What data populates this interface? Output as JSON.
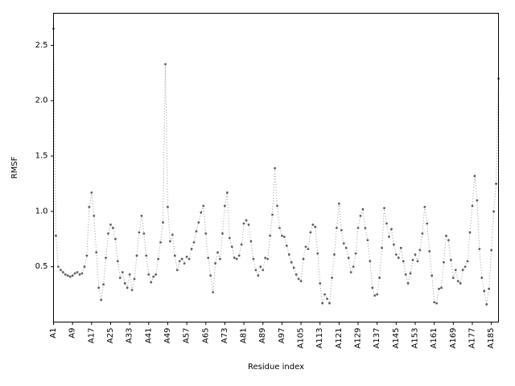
{
  "figure": {
    "background": "#ffffff",
    "line_color": "#999999",
    "marker_color": "#5f5f5f",
    "spine_color": "#000000"
  },
  "chart_data": {
    "type": "line",
    "style": "dotted line with small point markers, gray",
    "title": "",
    "xlabel": "Residue index",
    "ylabel": "RMSF",
    "legend": "none",
    "grid": false,
    "ylim": [
      0,
      2.79
    ],
    "y_ticks": [
      0.5,
      1.0,
      1.5,
      2.0,
      2.5
    ],
    "y_tick_labels": [
      "0.5",
      "1.0",
      "1.5",
      "2.0",
      "2.5"
    ],
    "x_tick_step": 8,
    "x_tick_labels": [
      "A1",
      "A9",
      "A17",
      "A25",
      "A33",
      "A41",
      "A49",
      "A57",
      "A65",
      "A73",
      "A81",
      "A89",
      "A97",
      "A105",
      "A113",
      "A121",
      "A129",
      "A137",
      "A145",
      "A153",
      "A161",
      "A169",
      "A177",
      "A185"
    ],
    "x_tick_label_rotation": 90,
    "residue_prefix": "A",
    "n_points": 188,
    "values": [
      2.65,
      0.78,
      0.5,
      0.47,
      0.45,
      0.43,
      0.42,
      0.41,
      0.42,
      0.44,
      0.45,
      0.43,
      0.44,
      0.5,
      0.6,
      1.04,
      1.17,
      0.96,
      0.63,
      0.31,
      0.2,
      0.34,
      0.58,
      0.8,
      0.88,
      0.85,
      0.75,
      0.55,
      0.4,
      0.45,
      0.35,
      0.31,
      0.43,
      0.29,
      0.39,
      0.6,
      0.81,
      0.96,
      0.8,
      0.6,
      0.43,
      0.36,
      0.41,
      0.43,
      0.57,
      0.72,
      0.9,
      2.33,
      1.04,
      0.73,
      0.79,
      0.6,
      0.47,
      0.55,
      0.57,
      0.53,
      0.59,
      0.57,
      0.66,
      0.72,
      0.82,
      0.9,
      0.99,
      1.05,
      0.8,
      0.58,
      0.42,
      0.27,
      0.53,
      0.63,
      0.57,
      0.8,
      1.05,
      1.17,
      0.76,
      0.68,
      0.58,
      0.57,
      0.6,
      0.7,
      0.89,
      0.92,
      0.88,
      0.73,
      0.57,
      0.47,
      0.42,
      0.5,
      0.47,
      0.58,
      0.57,
      0.78,
      0.97,
      1.39,
      1.05,
      0.85,
      0.78,
      0.77,
      0.69,
      0.61,
      0.54,
      0.49,
      0.43,
      0.39,
      0.37,
      0.57,
      0.68,
      0.66,
      0.81,
      0.88,
      0.86,
      0.62,
      0.35,
      0.17,
      0.25,
      0.21,
      0.17,
      0.4,
      0.61,
      0.85,
      1.07,
      0.83,
      0.71,
      0.67,
      0.58,
      0.45,
      0.5,
      0.62,
      0.85,
      0.96,
      1.02,
      0.85,
      0.74,
      0.55,
      0.31,
      0.24,
      0.25,
      0.4,
      0.67,
      1.03,
      0.89,
      0.77,
      0.84,
      0.7,
      0.61,
      0.58,
      0.67,
      0.55,
      0.43,
      0.35,
      0.44,
      0.56,
      0.61,
      0.55,
      0.65,
      0.8,
      1.04,
      0.89,
      0.64,
      0.42,
      0.18,
      0.17,
      0.3,
      0.31,
      0.54,
      0.78,
      0.74,
      0.56,
      0.4,
      0.47,
      0.37,
      0.35,
      0.47,
      0.5,
      0.55,
      0.81,
      1.05,
      1.32,
      1.1,
      0.66,
      0.4,
      0.28,
      0.16,
      0.3,
      0.65,
      1.0,
      1.25,
      2.2
    ]
  }
}
